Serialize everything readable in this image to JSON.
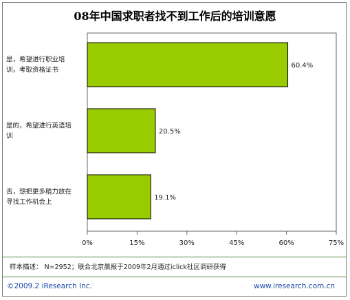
{
  "chart_data": {
    "type": "bar",
    "orientation": "horizontal",
    "title": "08年中国求职者找不到工作后的培训意愿",
    "categories": [
      [
        "是，希望进行职业培",
        "训，考取资格证书"
      ],
      [
        "是的，希望进行英语培",
        "训"
      ],
      [
        "否，想把更多精力放在",
        "寻找工作机会上"
      ]
    ],
    "values": [
      60.4,
      20.5,
      19.1
    ],
    "value_labels": [
      "60.4%",
      "20.5%",
      "19.1%"
    ],
    "xlim": [
      0,
      75
    ],
    "xticks": [
      0,
      15,
      30,
      45,
      60,
      75
    ],
    "xtick_labels": [
      "0%",
      "15%",
      "30%",
      "45%",
      "60%",
      "75%"
    ],
    "grid": false,
    "colors": {
      "bar": "#99cc00",
      "bar_border": "#000000"
    }
  },
  "note": "样本描述： N=2952；联合北京晨报于2009年2月通过iclick社区调研获得",
  "footer": {
    "copyright": "©2009.2 iResearch Inc.",
    "website": "www.iresearch.com.cn"
  }
}
